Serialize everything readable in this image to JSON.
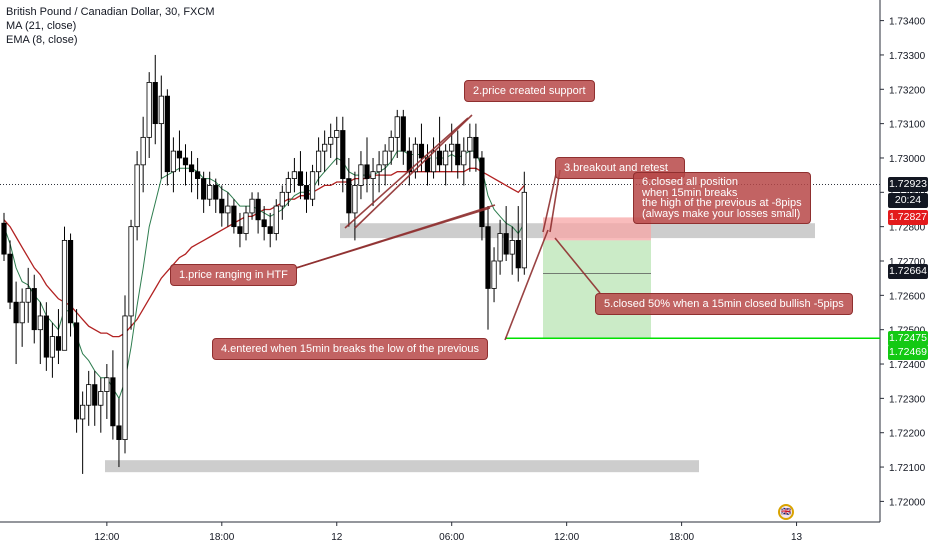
{
  "legend": {
    "title": "British Pound / Canadian Dollar, 30, FXCM",
    "ma": "MA (21, close)",
    "ema": "EMA (8, close)"
  },
  "badges": {
    "last": "1.72923",
    "countdown": "20:24",
    "stop": "1.72827",
    "mid": "1.72664",
    "target": "1.72475",
    "target2": "1.72469"
  },
  "notes": {
    "n1": "1.price ranging in HTF",
    "n2": "2.price created support",
    "n3": "3.breakout and retest",
    "n4": "4.entered when 15min breaks the low of the previous",
    "n5": "5.closed 50% when a 15min closed bullish -5pips",
    "n6": "6.closed all position\nwhen 15min breaks\nthe high of the previous at -8pips\n(always make your losses small)"
  },
  "colors": {
    "up": "#ffffff",
    "down": "#000000",
    "ma": "#b22222",
    "ema": "#2e7d4f",
    "stop_zone": "#f7a6a6",
    "target_zone": "#b9e4b4",
    "note_fill": "#b74848",
    "target_line": "#00e000",
    "badge_red": "#e31a1c",
    "badge_green": "#13c913",
    "badge_dark": "#131722"
  },
  "chart_data": {
    "type": "candlestick",
    "symbol": "GBPCAD",
    "timeframe": "30",
    "y_ticks": [
      "1.73400",
      "1.73300",
      "1.73200",
      "1.73100",
      "1.73000",
      "1.72900",
      "1.72800",
      "1.72700",
      "1.72600",
      "1.72500",
      "1.72400",
      "1.72300",
      "1.72200",
      "1.72100",
      "1.72000"
    ],
    "ylim": [
      1.7194,
      1.7346
    ],
    "x_ticks": [
      "12:00",
      "18:00",
      "12",
      "06:00",
      "12:00",
      "18:00",
      "13"
    ],
    "x_tick_bars": [
      17,
      36,
      55,
      74,
      93,
      112,
      131
    ],
    "candles": [
      [
        1.7281,
        1.7284,
        1.727,
        1.7272
      ],
      [
        1.7272,
        1.7276,
        1.7256,
        1.7258
      ],
      [
        1.7258,
        1.7264,
        1.724,
        1.7252
      ],
      [
        1.7252,
        1.7262,
        1.7245,
        1.7258
      ],
      [
        1.7258,
        1.7268,
        1.7252,
        1.7262
      ],
      [
        1.7262,
        1.7266,
        1.7246,
        1.725
      ],
      [
        1.725,
        1.7258,
        1.724,
        1.7254
      ],
      [
        1.7254,
        1.7258,
        1.7238,
        1.7242
      ],
      [
        1.7242,
        1.7252,
        1.7236,
        1.7248
      ],
      [
        1.7248,
        1.7256,
        1.724,
        1.7244
      ],
      [
        1.7244,
        1.728,
        1.7244,
        1.7276
      ],
      [
        1.7276,
        1.7278,
        1.7248,
        1.7252
      ],
      [
        1.7252,
        1.7256,
        1.722,
        1.7224
      ],
      [
        1.7224,
        1.7232,
        1.7208,
        1.7228
      ],
      [
        1.7228,
        1.7238,
        1.7222,
        1.7234
      ],
      [
        1.7234,
        1.7238,
        1.7222,
        1.7228
      ],
      [
        1.7228,
        1.7236,
        1.722,
        1.7232
      ],
      [
        1.7232,
        1.724,
        1.7224,
        1.7236
      ],
      [
        1.7236,
        1.7244,
        1.7218,
        1.7222
      ],
      [
        1.7222,
        1.723,
        1.721,
        1.7218
      ],
      [
        1.7218,
        1.726,
        1.7214,
        1.7254
      ],
      [
        1.7254,
        1.7282,
        1.725,
        1.728
      ],
      [
        1.728,
        1.7302,
        1.7276,
        1.7298
      ],
      [
        1.7298,
        1.7312,
        1.729,
        1.7306
      ],
      [
        1.7306,
        1.7325,
        1.73,
        1.7322
      ],
      [
        1.7322,
        1.733,
        1.7304,
        1.731
      ],
      [
        1.731,
        1.7324,
        1.7294,
        1.7318
      ],
      [
        1.7318,
        1.732,
        1.7292,
        1.7296
      ],
      [
        1.7296,
        1.7306,
        1.729,
        1.7302
      ],
      [
        1.7302,
        1.7308,
        1.7296,
        1.73
      ],
      [
        1.73,
        1.7304,
        1.7292,
        1.7298
      ],
      [
        1.7298,
        1.7302,
        1.729,
        1.7296
      ],
      [
        1.7296,
        1.73,
        1.7288,
        1.7294
      ],
      [
        1.7294,
        1.7296,
        1.7284,
        1.7288
      ],
      [
        1.7288,
        1.7296,
        1.7286,
        1.7292
      ],
      [
        1.7292,
        1.7294,
        1.7284,
        1.7288
      ],
      [
        1.7288,
        1.7292,
        1.728,
        1.7284
      ],
      [
        1.7284,
        1.729,
        1.728,
        1.7286
      ],
      [
        1.7286,
        1.7288,
        1.7278,
        1.728
      ],
      [
        1.728,
        1.7284,
        1.7274,
        1.7278
      ],
      [
        1.7278,
        1.7286,
        1.7276,
        1.7284
      ],
      [
        1.7284,
        1.729,
        1.7282,
        1.7288
      ],
      [
        1.7288,
        1.729,
        1.7278,
        1.7282
      ],
      [
        1.7282,
        1.7286,
        1.7276,
        1.728
      ],
      [
        1.728,
        1.7284,
        1.7274,
        1.7278
      ],
      [
        1.7278,
        1.7288,
        1.7276,
        1.7286
      ],
      [
        1.7286,
        1.7292,
        1.7282,
        1.729
      ],
      [
        1.729,
        1.7296,
        1.7286,
        1.7294
      ],
      [
        1.7294,
        1.73,
        1.729,
        1.7296
      ],
      [
        1.7296,
        1.7302,
        1.7288,
        1.7292
      ],
      [
        1.7292,
        1.7296,
        1.7284,
        1.7288
      ],
      [
        1.7288,
        1.7298,
        1.7286,
        1.7296
      ],
      [
        1.7296,
        1.7306,
        1.7292,
        1.7302
      ],
      [
        1.7302,
        1.7308,
        1.7296,
        1.7304
      ],
      [
        1.7304,
        1.731,
        1.73,
        1.7306
      ],
      [
        1.7306,
        1.7312,
        1.7298,
        1.7308
      ],
      [
        1.7308,
        1.7312,
        1.729,
        1.7294
      ],
      [
        1.7294,
        1.73,
        1.728,
        1.7284
      ],
      [
        1.7284,
        1.7296,
        1.7276,
        1.7292
      ],
      [
        1.7292,
        1.7302,
        1.7288,
        1.7298
      ],
      [
        1.7298,
        1.7306,
        1.729,
        1.7294
      ],
      [
        1.7294,
        1.73,
        1.7286,
        1.7296
      ],
      [
        1.7296,
        1.7302,
        1.729,
        1.7298
      ],
      [
        1.7298,
        1.7304,
        1.7292,
        1.7302
      ],
      [
        1.7302,
        1.7308,
        1.7298,
        1.7306
      ],
      [
        1.7306,
        1.7314,
        1.73,
        1.7312
      ],
      [
        1.7312,
        1.7314,
        1.7298,
        1.7302
      ],
      [
        1.7302,
        1.7306,
        1.7292,
        1.7296
      ],
      [
        1.7296,
        1.7306,
        1.7294,
        1.7304
      ],
      [
        1.7304,
        1.731,
        1.7296,
        1.73
      ],
      [
        1.73,
        1.7304,
        1.7292,
        1.7296
      ],
      [
        1.7296,
        1.7306,
        1.7294,
        1.7302
      ],
      [
        1.7302,
        1.7312,
        1.7296,
        1.7298
      ],
      [
        1.7298,
        1.7304,
        1.7292,
        1.7302
      ],
      [
        1.7302,
        1.731,
        1.7296,
        1.7304
      ],
      [
        1.7304,
        1.7308,
        1.7294,
        1.7298
      ],
      [
        1.7298,
        1.7306,
        1.7292,
        1.7302
      ],
      [
        1.7302,
        1.731,
        1.7296,
        1.7306
      ],
      [
        1.7306,
        1.731,
        1.7296,
        1.73
      ],
      [
        1.73,
        1.7302,
        1.7276,
        1.728
      ],
      [
        1.728,
        1.7286,
        1.725,
        1.7262
      ],
      [
        1.7262,
        1.7274,
        1.7258,
        1.727
      ],
      [
        1.727,
        1.7282,
        1.7266,
        1.7278
      ],
      [
        1.7278,
        1.7286,
        1.727,
        1.7272
      ],
      [
        1.7272,
        1.728,
        1.7266,
        1.7276
      ],
      [
        1.7276,
        1.7286,
        1.7264,
        1.7268
      ],
      [
        1.7268,
        1.7296,
        1.7266,
        1.729
      ]
    ],
    "ma_21": [
      1.7282,
      1.728,
      1.7277,
      1.7274,
      1.7271,
      1.7268,
      1.7266,
      1.7263,
      1.7261,
      1.7259,
      1.7258,
      1.7257,
      1.7255,
      1.7253,
      1.7251,
      1.725,
      1.7249,
      1.7249,
      1.7248,
      1.7248,
      1.7249,
      1.7251,
      1.7253,
      1.7256,
      1.7259,
      1.7262,
      1.7265,
      1.7267,
      1.7269,
      1.7271,
      1.7272,
      1.7274,
      1.7275,
      1.7276,
      1.7277,
      1.7278,
      1.7279,
      1.728,
      1.7281,
      1.7282,
      1.7283,
      1.7283,
      1.7284,
      1.7285,
      1.7285,
      1.7286,
      1.7287,
      1.7288,
      1.7288,
      1.7289,
      1.7289,
      1.729,
      1.7291,
      1.7292,
      1.7292,
      1.7293,
      1.7293,
      1.7293,
      1.7294,
      1.7294,
      1.7294,
      1.7295,
      1.7295,
      1.7295,
      1.7295,
      1.7296,
      1.7296,
      1.7296,
      1.7296,
      1.7296,
      1.7296,
      1.7296,
      1.7296,
      1.7296,
      1.7296,
      1.7296,
      1.7296,
      1.7297,
      1.7297,
      1.7296,
      1.7295,
      1.7294,
      1.7293,
      1.7292,
      1.7291,
      1.729,
      1.7292
    ],
    "ema_8": [
      1.728,
      1.7275,
      1.7268,
      1.7264,
      1.7263,
      1.726,
      1.7258,
      1.7254,
      1.7252,
      1.725,
      1.7256,
      1.7255,
      1.7248,
      1.7243,
      1.7241,
      1.7238,
      1.7236,
      1.7236,
      1.7233,
      1.723,
      1.7235,
      1.7245,
      1.7257,
      1.7268,
      1.728,
      1.7287,
      1.7294,
      1.7295,
      1.7296,
      1.7297,
      1.7297,
      1.7297,
      1.7296,
      1.7294,
      1.7294,
      1.7293,
      1.7291,
      1.729,
      1.7288,
      1.7286,
      1.7286,
      1.7286,
      1.7285,
      1.7284,
      1.7283,
      1.7284,
      1.7285,
      1.7287,
      1.7289,
      1.729,
      1.729,
      1.7291,
      1.7294,
      1.7296,
      1.7298,
      1.73,
      1.7299,
      1.7296,
      1.7295,
      1.7295,
      1.7295,
      1.7295,
      1.7296,
      1.7297,
      1.7299,
      1.7302,
      1.7302,
      1.7301,
      1.7301,
      1.7301,
      1.73,
      1.73,
      1.73,
      1.73,
      1.7301,
      1.73,
      1.7301,
      1.7302,
      1.7302,
      1.7297,
      1.7289,
      1.7285,
      1.7283,
      1.7281,
      1.728,
      1.7278,
      1.7281
    ],
    "zones": {
      "support_top": [
        1.7281,
        1.7279
      ],
      "support_bottom": [
        1.7212,
        1.721
      ],
      "position": {
        "entry": 1.7276,
        "stop": 1.72827,
        "target": 1.72475,
        "mid": 1.72664
      }
    },
    "horizontal_lines": {
      "last_price": 1.72923,
      "target_line": 1.72475
    }
  }
}
